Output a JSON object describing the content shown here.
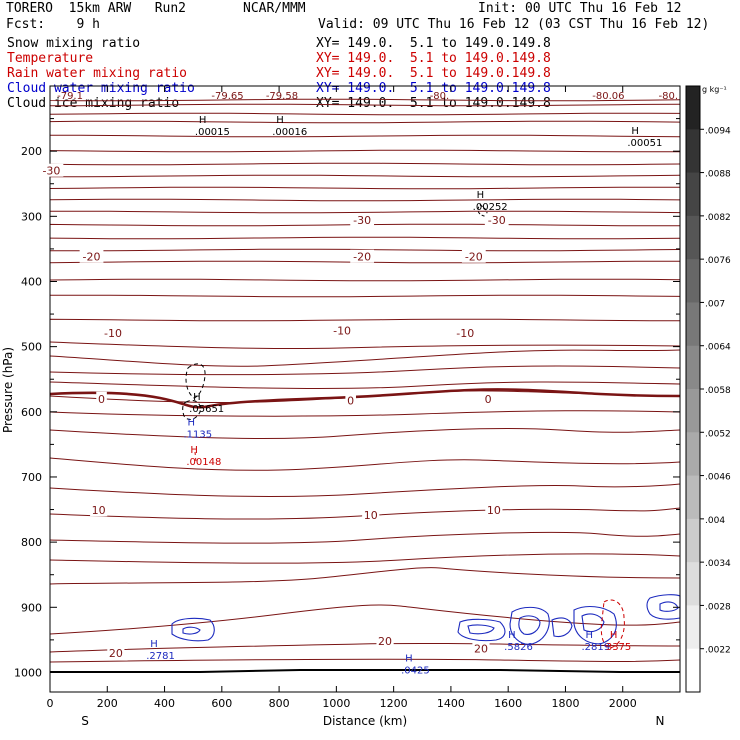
{
  "header": {
    "model": "TORERO  15km ARW   Run2",
    "org": "NCAR/MMM",
    "init": "Init: 00 UTC Thu 16 Feb 12",
    "fcst": "Fcst:    9 h",
    "valid": "Valid: 09 UTC Thu 16 Feb 12 (03 CST Thu 16 Feb 12)"
  },
  "fields": [
    {
      "name": "Snow mixing ratio",
      "xy": "XY= 149.0.  5.1 to 149.0.149.8",
      "color": "#000000"
    },
    {
      "name": "Temperature",
      "xy": "XY= 149.0.  5.1 to 149.0.149.8",
      "color": "#cc0000"
    },
    {
      "name": "Rain water mixing ratio",
      "xy": "XY= 149.0.  5.1 to 149.0.149.8",
      "color": "#cc0000"
    },
    {
      "name": "Cloud water mixing ratio",
      "xy": "XY= 149.0.  5.1 to 149.0.149.8",
      "color": "#0000cc"
    },
    {
      "name": "Cloud ice mixing ratio",
      "xy": "XY= 149.0.  5.1 to 149.0.149.8",
      "color": "#000000"
    }
  ],
  "colors": {
    "temperature": "#7a1414",
    "freezing": "#7a1414",
    "cloud_water": "#1d2bbf",
    "rain": "#cc0000",
    "snow_ice": "#000000"
  },
  "chart_data": {
    "type": "contour-cross-section",
    "xlabel": "Distance (km)",
    "ylabel": "Pressure (hPa)",
    "xlim": [
      0,
      2200
    ],
    "ylim": [
      1030,
      100
    ],
    "x_ticks": [
      0,
      200,
      400,
      600,
      800,
      1000,
      1200,
      1400,
      1600,
      1800,
      2000
    ],
    "y_ticks": [
      200,
      300,
      400,
      500,
      600,
      700,
      800,
      900,
      1000
    ],
    "endpoints": {
      "left": "S",
      "right": "N"
    },
    "temperature_labels": [
      {
        "x": 5,
        "p": 230,
        "text": "-30"
      },
      {
        "x": 1090,
        "p": 306,
        "text": "-30"
      },
      {
        "x": 1560,
        "p": 306,
        "text": "-30"
      },
      {
        "x": 145,
        "p": 362,
        "text": "-20"
      },
      {
        "x": 1090,
        "p": 362,
        "text": "-20"
      },
      {
        "x": 1480,
        "p": 362,
        "text": "-20"
      },
      {
        "x": 220,
        "p": 479,
        "text": "-10"
      },
      {
        "x": 1020,
        "p": 475,
        "text": "-10"
      },
      {
        "x": 1450,
        "p": 479,
        "text": "-10"
      },
      {
        "x": 180,
        "p": 580,
        "text": "0"
      },
      {
        "x": 1050,
        "p": 583,
        "text": "0"
      },
      {
        "x": 1530,
        "p": 580,
        "text": "0"
      },
      {
        "x": 170,
        "p": 751,
        "text": "10"
      },
      {
        "x": 1120,
        "p": 758,
        "text": "10"
      },
      {
        "x": 1550,
        "p": 751,
        "text": "10"
      },
      {
        "x": 230,
        "p": 970,
        "text": "20"
      },
      {
        "x": 1170,
        "p": 952,
        "text": "20"
      },
      {
        "x": 1505,
        "p": 963,
        "text": "20"
      }
    ],
    "top_temperature_labels": [
      {
        "x": 70,
        "text": "-79.1"
      },
      {
        "x": 620,
        "text": "-79.65"
      },
      {
        "x": 810,
        "text": "-79.58"
      },
      {
        "x": 1360,
        "text": "-80."
      },
      {
        "x": 1950,
        "text": "-80.06"
      },
      {
        "x": 2200,
        "text": "-80."
      }
    ],
    "maxima": [
      {
        "x": 520,
        "p": 160,
        "label": ".00015",
        "color": "black",
        "marker": "H"
      },
      {
        "x": 790,
        "p": 160,
        "label": ".00016",
        "color": "black",
        "marker": "H"
      },
      {
        "x": 2030,
        "p": 177,
        "label": ".00051",
        "color": "black",
        "marker": "H"
      },
      {
        "x": 1490,
        "p": 275,
        "label": ".00252",
        "color": "black",
        "marker": "H"
      },
      {
        "x": 500,
        "p": 585,
        "label": ".05651",
        "color": "black",
        "marker": "H"
      },
      {
        "x": 480,
        "p": 624,
        "label": ".1135",
        "color": "blue",
        "marker": "H"
      },
      {
        "x": 490,
        "p": 666,
        "label": ".00148",
        "color": "red",
        "marker": "H"
      },
      {
        "x": 350,
        "p": 964,
        "label": ".2781",
        "color": "blue",
        "marker": "H"
      },
      {
        "x": 1240,
        "p": 986,
        "label": ".0425",
        "color": "blue",
        "marker": "H"
      },
      {
        "x": 1600,
        "p": 950,
        "label": ".5826",
        "color": "blue",
        "marker": "H"
      },
      {
        "x": 1870,
        "p": 950,
        "label": ".2819",
        "color": "blue",
        "marker": "H"
      },
      {
        "x": 1955,
        "p": 950,
        "label": "3375",
        "color": "red",
        "marker": "H"
      }
    ],
    "colorbar": {
      "unit": "g kg⁻¹",
      "ticks": [
        ".0094",
        ".0088",
        ".0082",
        ".0076",
        ".007",
        ".0064",
        ".0058",
        ".0052",
        ".0046",
        ".004",
        ".0034",
        ".0028",
        ".0022"
      ]
    }
  }
}
